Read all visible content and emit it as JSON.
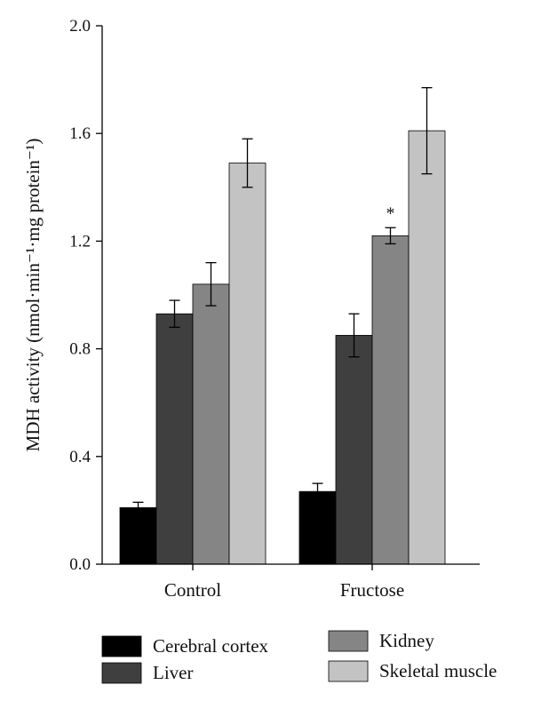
{
  "chart_data": {
    "type": "bar",
    "categories": [
      "Control",
      "Fructose"
    ],
    "series": [
      {
        "name": "Cerebral cortex",
        "values": [
          0.21,
          0.27
        ],
        "errors": [
          0.02,
          0.03
        ],
        "color": "#000000"
      },
      {
        "name": "Liver",
        "values": [
          0.93,
          0.85
        ],
        "errors": [
          0.05,
          0.08
        ],
        "color": "#3f3f3f"
      },
      {
        "name": "Kidney",
        "values": [
          1.04,
          1.22
        ],
        "errors": [
          0.08,
          0.03
        ],
        "color": "#858585"
      },
      {
        "name": "Skeletal muscle",
        "values": [
          1.49,
          1.61
        ],
        "errors": [
          0.09,
          0.16
        ],
        "color": "#c3c3c3"
      }
    ],
    "annotations": [
      {
        "category": "Fructose",
        "series": "Kidney",
        "text": "*"
      }
    ],
    "ylabel": "MDH activity (nmol·min⁻¹·mg protein⁻¹)",
    "ylim": [
      0,
      2.0
    ],
    "yticks": [
      "0.0",
      "0.4",
      "0.8",
      "1.2",
      "1.6",
      "2.0"
    ],
    "grid": false,
    "legend_position": "bottom"
  }
}
